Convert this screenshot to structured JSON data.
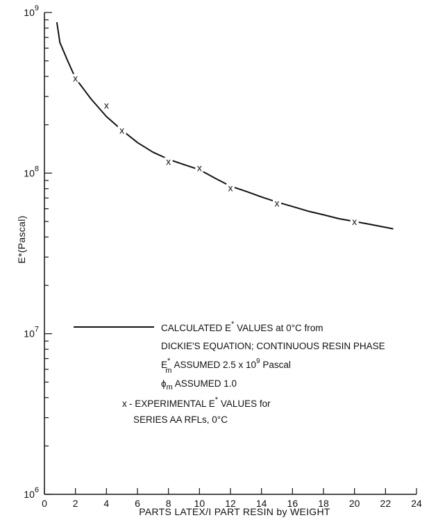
{
  "chart_data": {
    "type": "line",
    "xlabel": "PARTS LATEX/I PART RESIN by WEIGHT",
    "ylabel": "E*(Pascal)",
    "xlim": [
      0,
      24
    ],
    "ylim": [
      1000000,
      1000000000
    ],
    "y_scale": "log",
    "grid": false,
    "x_ticks": [
      0,
      2,
      4,
      6,
      8,
      10,
      12,
      14,
      16,
      18,
      20,
      22,
      24
    ],
    "y_tick_labels": [
      {
        "value": 1000000,
        "base": "10",
        "exp": "6"
      },
      {
        "value": 10000000,
        "base": "10",
        "exp": "7"
      },
      {
        "value": 100000000,
        "base": "10",
        "exp": "8"
      },
      {
        "value": 1000000000,
        "base": "10",
        "exp": "9"
      }
    ],
    "series": [
      {
        "style": "line",
        "color": "#111111",
        "x": [
          0.8,
          1.0,
          1.5,
          2.0,
          3.0,
          4.0,
          5.0,
          6.0,
          7.0,
          8.0,
          9.0,
          10.0,
          11.0,
          12.0,
          13.0,
          14.0,
          15.0,
          16.0,
          17.0,
          18.0,
          19.0,
          20.0,
          21.0,
          22.5
        ],
        "y": [
          870000000,
          650000000,
          500000000,
          390000000,
          290000000,
          225000000,
          185000000,
          155000000,
          135000000,
          122000000,
          113000000,
          105000000,
          93000000,
          83000000,
          77000000,
          71000000,
          66000000,
          62000000,
          58000000,
          55000000,
          52000000,
          50000000,
          48000000,
          45000000
        ]
      },
      {
        "style": "marker",
        "marker": "x",
        "color": "#111111",
        "x": [
          2,
          4,
          5,
          8,
          10,
          12,
          15,
          20
        ],
        "y": [
          390000000,
          265000000,
          185000000,
          118000000,
          108000000,
          81000000,
          65000000,
          50000000
        ]
      }
    ],
    "legend": {
      "placement": "center-left",
      "line_label_1": "CALCULATED E",
      "line_label_1_sup": "*",
      "line_label_1_tail": " VALUES at 0°C from",
      "line_label_2": "DICKIE'S EQUATION; CONTINUOUS RESIN PHASE",
      "em_symbol": "E",
      "em_sup": "*",
      "em_sub": "m",
      "em_text": " ASSUMED 2.5 x 10",
      "em_exp": "9",
      "em_unit": " Pascal",
      "phi_symbol": "ϕ",
      "phi_sub": "m",
      "phi_text": " ASSUMED 1.0",
      "marker_symbol": "x",
      "marker_label_1": "- EXPERIMENTAL E",
      "marker_label_1_sup": "*",
      "marker_label_1_tail": " VALUES for",
      "marker_label_2": "SERIES AA RFLs, 0°C"
    }
  }
}
